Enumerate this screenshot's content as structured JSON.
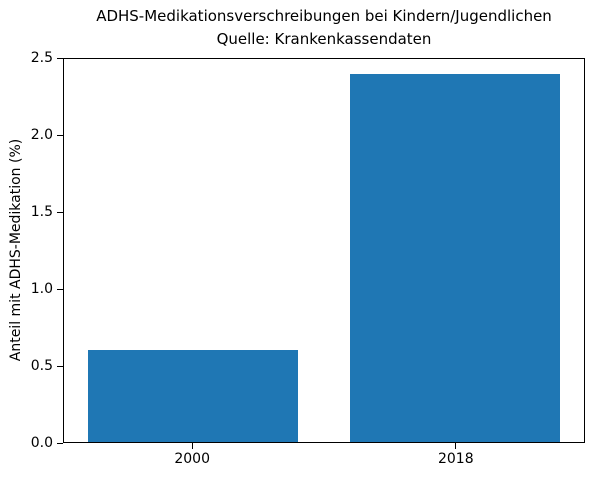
{
  "chart_data": {
    "type": "bar",
    "title": "ADHS-Medikationsverschreibungen bei Kindern/Jugendlichen",
    "subtitle": "Quelle: Krankenkassendaten",
    "categories": [
      "2000",
      "2018"
    ],
    "values": [
      0.6,
      2.4
    ],
    "xlabel": "",
    "ylabel": "Anteil mit ADHS-Medikation (%)",
    "ylim": [
      0.0,
      2.5
    ],
    "yticks": [
      "0.0",
      "0.5",
      "1.0",
      "1.5",
      "2.0",
      "2.5"
    ],
    "bar_color": "#1f77b4",
    "bar_width_rel": 0.8,
    "grid": false,
    "legend_position": "none",
    "frame": "full-box",
    "background_color": "#ffffff",
    "text_color": "#000000"
  }
}
